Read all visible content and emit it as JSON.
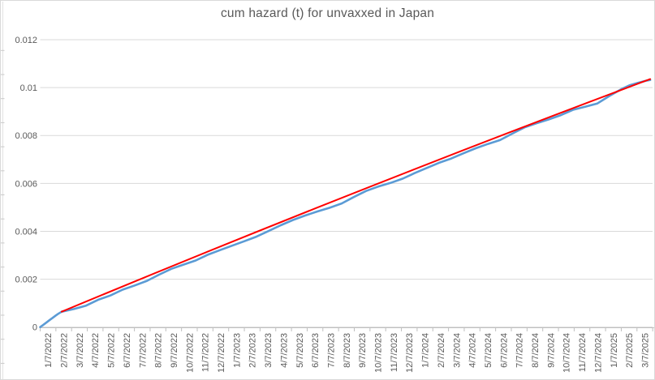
{
  "title": "cum hazard (t) for unvaxxed in Japan",
  "colors": {
    "series_blue": "#5B9BD5",
    "trend_red": "#FF0000",
    "gridline": "#D9D9D9",
    "axis": "#BFBFBF",
    "text": "#595959",
    "background": "#FFFFFF",
    "sheet_line": "#E2E2E2",
    "sheet_tick": "#C9C9C9"
  },
  "chart_data": {
    "type": "line",
    "title": "cum hazard (t) for unvaxxed in Japan",
    "xlabel": "",
    "ylabel": "",
    "grid": true,
    "legend": false,
    "ylim": [
      0,
      0.012
    ],
    "y_tick_values": [
      0.012,
      0.01,
      0.008,
      0.006,
      0.004,
      0.002,
      0
    ],
    "y_tick_labels": [
      "0.012",
      "0.01",
      "0.008",
      "0.006",
      "0.004",
      "0.002",
      "0"
    ],
    "x_unit": "fractional month index, 0 = 1/7/2022, one unit per monthly tick",
    "x_tick_labels": [
      "1/7/2022",
      "2/7/2022",
      "3/7/2022",
      "4/7/2022",
      "5/7/2022",
      "6/7/2022",
      "7/7/2022",
      "8/7/2022",
      "9/7/2022",
      "10/7/2022",
      "11/7/2022",
      "12/7/2022",
      "1/7/2023",
      "2/7/2023",
      "3/7/2023",
      "4/7/2023",
      "5/7/2023",
      "6/7/2023",
      "7/7/2023",
      "8/7/2023",
      "9/7/2023",
      "10/7/2023",
      "11/7/2023",
      "12/7/2023",
      "1/7/2024",
      "2/7/2024",
      "3/7/2024",
      "4/7/2024",
      "5/7/2024",
      "6/7/2024",
      "7/7/2024",
      "8/7/2024",
      "9/7/2024",
      "10/7/2024",
      "11/7/2024",
      "12/7/2024",
      "1/7/2025",
      "2/7/2025",
      "3/7/2025"
    ],
    "series": [
      {
        "name": "cum hazard (t) unvaxxed Japan",
        "color": "#5B9BD5",
        "style": "stepped-polyline",
        "points": [
          [
            0.0,
            0.0
          ],
          [
            0.18,
            8.5e-05
          ],
          [
            0.39,
            0.000186
          ],
          [
            0.59,
            0.000288
          ],
          [
            0.8,
            0.00039
          ],
          [
            1.01,
            0.000492
          ],
          [
            1.16,
            0.000559
          ],
          [
            1.37,
            0.000644
          ],
          [
            2.15,
            0.000753
          ],
          [
            2.92,
            0.000898
          ],
          [
            3.7,
            0.001142
          ],
          [
            4.47,
            0.001319
          ],
          [
            5.25,
            0.001563
          ],
          [
            6.02,
            0.001739
          ],
          [
            6.8,
            0.001932
          ],
          [
            7.57,
            0.00219
          ],
          [
            8.35,
            0.002434
          ],
          [
            9.12,
            0.002607
          ],
          [
            9.9,
            0.00278
          ],
          [
            10.67,
            0.00302
          ],
          [
            11.45,
            0.003214
          ],
          [
            12.22,
            0.0034
          ],
          [
            13.0,
            0.003586
          ],
          [
            13.77,
            0.003776
          ],
          [
            14.55,
            0.004014
          ],
          [
            15.32,
            0.004251
          ],
          [
            16.1,
            0.004471
          ],
          [
            16.87,
            0.004658
          ],
          [
            17.65,
            0.004827
          ],
          [
            18.42,
            0.00498
          ],
          [
            19.2,
            0.005163
          ],
          [
            19.97,
            0.005431
          ],
          [
            20.75,
            0.005685
          ],
          [
            21.52,
            0.005868
          ],
          [
            22.3,
            0.006017
          ],
          [
            23.08,
            0.006197
          ],
          [
            23.85,
            0.006431
          ],
          [
            24.63,
            0.006647
          ],
          [
            25.4,
            0.006861
          ],
          [
            26.18,
            0.007041
          ],
          [
            26.95,
            0.007258
          ],
          [
            27.73,
            0.007468
          ],
          [
            28.5,
            0.007647
          ],
          [
            29.28,
            0.007807
          ],
          [
            30.05,
            0.008075
          ],
          [
            30.83,
            0.008336
          ],
          [
            31.6,
            0.008512
          ],
          [
            32.38,
            0.008671
          ],
          [
            33.15,
            0.008851
          ],
          [
            33.93,
            0.009075
          ],
          [
            34.7,
            0.0092
          ],
          [
            35.48,
            0.009339
          ],
          [
            36.25,
            0.009651
          ],
          [
            37.03,
            0.009942
          ],
          [
            37.55,
            0.010102
          ],
          [
            38.06,
            0.010197
          ],
          [
            38.58,
            0.010288
          ],
          [
            38.84,
            0.010319
          ]
        ]
      },
      {
        "name": "trend line",
        "color": "#FF0000",
        "style": "straight",
        "points": [
          [
            1.37,
            0.000644
          ],
          [
            38.84,
            0.010356
          ]
        ]
      }
    ]
  }
}
